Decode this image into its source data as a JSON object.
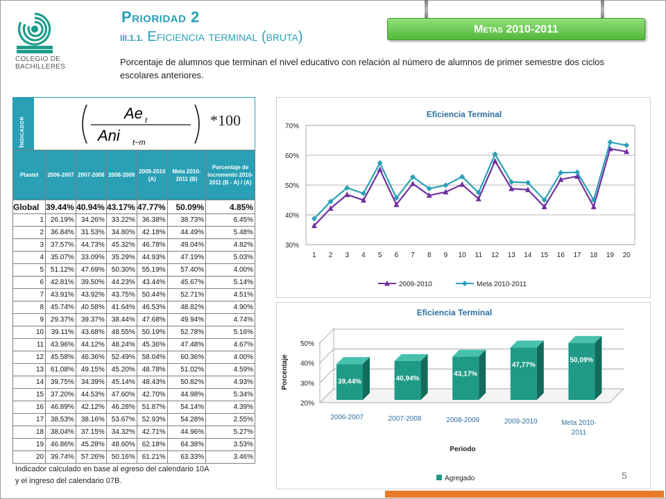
{
  "header": {
    "logo_text": [
      "COLEGIO DE",
      "BACHILLERES"
    ],
    "priority": "Prioridad 2",
    "section_number": "III.1.1.",
    "section_title": "Eficiencia terminal (bruta)",
    "meta_sign": "Metas 2010-2011",
    "description": "Porcentaje de alumnos que terminan el nivel educativo con relación al número de alumnos de primer semestre dos ciclos escolares anteriores."
  },
  "indicator": {
    "label": "Indicador",
    "formula": {
      "num": "Ae",
      "num_sub": "t",
      "den": "Ani",
      "den_sub": "t−m",
      "mult": "*100"
    }
  },
  "table": {
    "headers": [
      "Plantel",
      "2006-2007",
      "2007-2008",
      "2008-2009",
      "2009-2010 (A)",
      "Meta 2010-2011 (B)",
      "Porcentaje de incremento 2010-2011 (B - A) / (A)"
    ],
    "global": [
      "Global",
      "39.44%",
      "40.94%",
      "43.17%",
      "47.77%",
      "50.09%",
      "4.85%"
    ],
    "rows": [
      [
        "1",
        "26.19%",
        "34.26%",
        "33.22%",
        "36.38%",
        "38.73%",
        "6.45%"
      ],
      [
        "2",
        "36.84%",
        "31.53%",
        "34.80%",
        "42.18%",
        "44.49%",
        "5.48%"
      ],
      [
        "3",
        "37.57%",
        "44.73%",
        "45.32%",
        "46.78%",
        "49.04%",
        "4.82%"
      ],
      [
        "4",
        "35.07%",
        "33.09%",
        "35.29%",
        "44.93%",
        "47.19%",
        "5.03%"
      ],
      [
        "5",
        "51.12%",
        "47.69%",
        "50.30%",
        "55.19%",
        "57.40%",
        "4.00%"
      ],
      [
        "6",
        "42.81%",
        "39.50%",
        "44.23%",
        "43.44%",
        "45.67%",
        "5.14%"
      ],
      [
        "7",
        "43.91%",
        "43.92%",
        "43.75%",
        "50.44%",
        "52.71%",
        "4.51%"
      ],
      [
        "8",
        "45.74%",
        "40.58%",
        "41.64%",
        "46.53%",
        "48.82%",
        "4.90%"
      ],
      [
        "9",
        "29.37%",
        "39.37%",
        "38.44%",
        "47.68%",
        "49.94%",
        "4.74%"
      ],
      [
        "10",
        "39.11%",
        "43.68%",
        "48.55%",
        "50.19%",
        "52.78%",
        "5.16%"
      ],
      [
        "11",
        "43.96%",
        "44.12%",
        "48.24%",
        "45.36%",
        "47.48%",
        "4.67%"
      ],
      [
        "12",
        "45.58%",
        "46.36%",
        "52.49%",
        "58.04%",
        "60.36%",
        "4.00%"
      ],
      [
        "13",
        "61.08%",
        "49.15%",
        "45.20%",
        "48.78%",
        "51.02%",
        "4.59%"
      ],
      [
        "14",
        "39.75%",
        "34.39%",
        "45.14%",
        "48.43%",
        "50.82%",
        "4.93%"
      ],
      [
        "15",
        "37.20%",
        "44.53%",
        "47.60%",
        "42.70%",
        "44.98%",
        "5.34%"
      ],
      [
        "16",
        "46.89%",
        "42.12%",
        "46.28%",
        "51.87%",
        "54.14%",
        "4.39%"
      ],
      [
        "17",
        "38.53%",
        "38.16%",
        "53.67%",
        "52.93%",
        "54.28%",
        "2.55%"
      ],
      [
        "18",
        "38.04%",
        "37.15%",
        "34.32%",
        "42.71%",
        "44.96%",
        "5.27%"
      ],
      [
        "19",
        "46.86%",
        "45.28%",
        "48.60%",
        "62.18%",
        "64.38%",
        "3.53%"
      ],
      [
        "20",
        "39.74%",
        "57.26%",
        "50.16%",
        "61.21%",
        "63.33%",
        "3.46%"
      ]
    ]
  },
  "footnote": [
    "Indicador calculado en base al egreso del calendario 10A",
    "y el ingreso del calendario 07B."
  ],
  "page_number": "5",
  "colors": {
    "teal": "#2aa0b5",
    "purple": "#7030a0",
    "green": "#53b83a",
    "orange": "#e87a28",
    "bar": "#1e9c8a"
  },
  "chart_data": [
    {
      "type": "line",
      "title": "Eficiencia Terminal",
      "categories": [
        "1",
        "2",
        "3",
        "4",
        "5",
        "6",
        "7",
        "8",
        "9",
        "10",
        "11",
        "12",
        "13",
        "14",
        "15",
        "16",
        "17",
        "18",
        "19",
        "20"
      ],
      "yticks": [
        "30%",
        "40%",
        "50%",
        "60%",
        "70%"
      ],
      "ylim": [
        30,
        70
      ],
      "grid": true,
      "legend": "bottom",
      "series": [
        {
          "name": "2009-2010",
          "color": "#7030a0",
          "marker": "triangle",
          "values": [
            36.38,
            42.18,
            46.78,
            44.93,
            55.19,
            43.44,
            50.44,
            46.53,
            47.68,
            50.19,
            45.36,
            58.04,
            48.78,
            48.43,
            42.7,
            51.87,
            52.93,
            42.71,
            62.18,
            61.21
          ]
        },
        {
          "name": "Meta 2010-2011",
          "color": "#2aa0b5",
          "marker": "diamond",
          "values": [
            38.73,
            44.49,
            49.04,
            47.19,
            57.4,
            45.67,
            52.71,
            48.82,
            49.94,
            52.78,
            47.48,
            60.36,
            51.02,
            50.82,
            44.98,
            54.14,
            54.28,
            44.96,
            64.38,
            63.33
          ]
        }
      ]
    },
    {
      "type": "bar",
      "title": "Eficiencia Terminal",
      "categories": [
        "2006-2007",
        "2007-2008",
        "2008-2009",
        "2009-2010",
        "Meta 2010-2011"
      ],
      "category_lines": [
        [
          "2006-2007"
        ],
        [
          "2007-2008"
        ],
        [
          "2008-2009"
        ],
        [
          "2009-2010"
        ],
        [
          "Meta 2010-",
          "2011"
        ]
      ],
      "values": [
        39.44,
        40.94,
        43.17,
        47.77,
        50.09
      ],
      "data_labels": [
        "39,44%",
        "40,94%",
        "43,17%",
        "47,77%",
        "50,09%"
      ],
      "yticks": [
        "20%",
        "30%",
        "40%",
        "50%"
      ],
      "ylim": [
        20,
        50
      ],
      "xlabel": "Periodo",
      "ylabel": "Porcentaje",
      "legend": "bottom-left",
      "series_name": "Agregado"
    }
  ]
}
